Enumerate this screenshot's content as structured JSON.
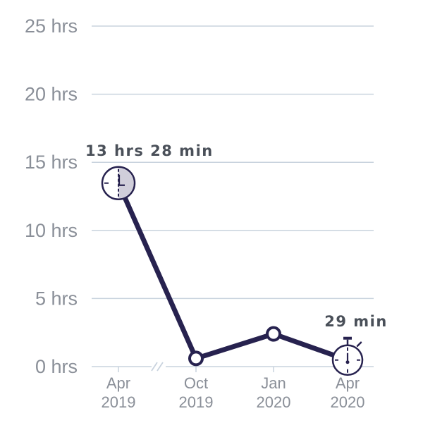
{
  "chart_data": {
    "type": "line",
    "y_unit_suffix": " hrs",
    "ylim": [
      0,
      25
    ],
    "y_ticks": [
      0,
      5,
      10,
      15,
      20,
      25
    ],
    "y_tick_labels": [
      "0 hrs",
      "5 hrs",
      "10 hrs",
      "15 hrs",
      "20 hrs",
      "25 hrs"
    ],
    "categories": [
      {
        "line1": "Apr",
        "line2": "2019"
      },
      {
        "line1": "Oct",
        "line2": "2019"
      },
      {
        "line1": "Jan",
        "line2": "2020"
      },
      {
        "line1": "Apr",
        "line2": "2020"
      }
    ],
    "values": [
      13.47,
      0.6,
      2.4,
      0.48
    ],
    "axis_break_between": [
      0,
      1
    ],
    "grid": true,
    "data_labels": [
      {
        "index": 0,
        "text": "13 hrs 28 min"
      },
      {
        "index": 3,
        "text": "29 min"
      }
    ],
    "markers": [
      "clock-icon",
      "circle",
      "circle",
      "stopwatch-icon"
    ],
    "colors": {
      "line": "#27224f",
      "grid": "#c9d3de",
      "tick_text": "#8a8f98",
      "label_text": "#4a5059",
      "clock_fill": "#d0ceda"
    }
  }
}
